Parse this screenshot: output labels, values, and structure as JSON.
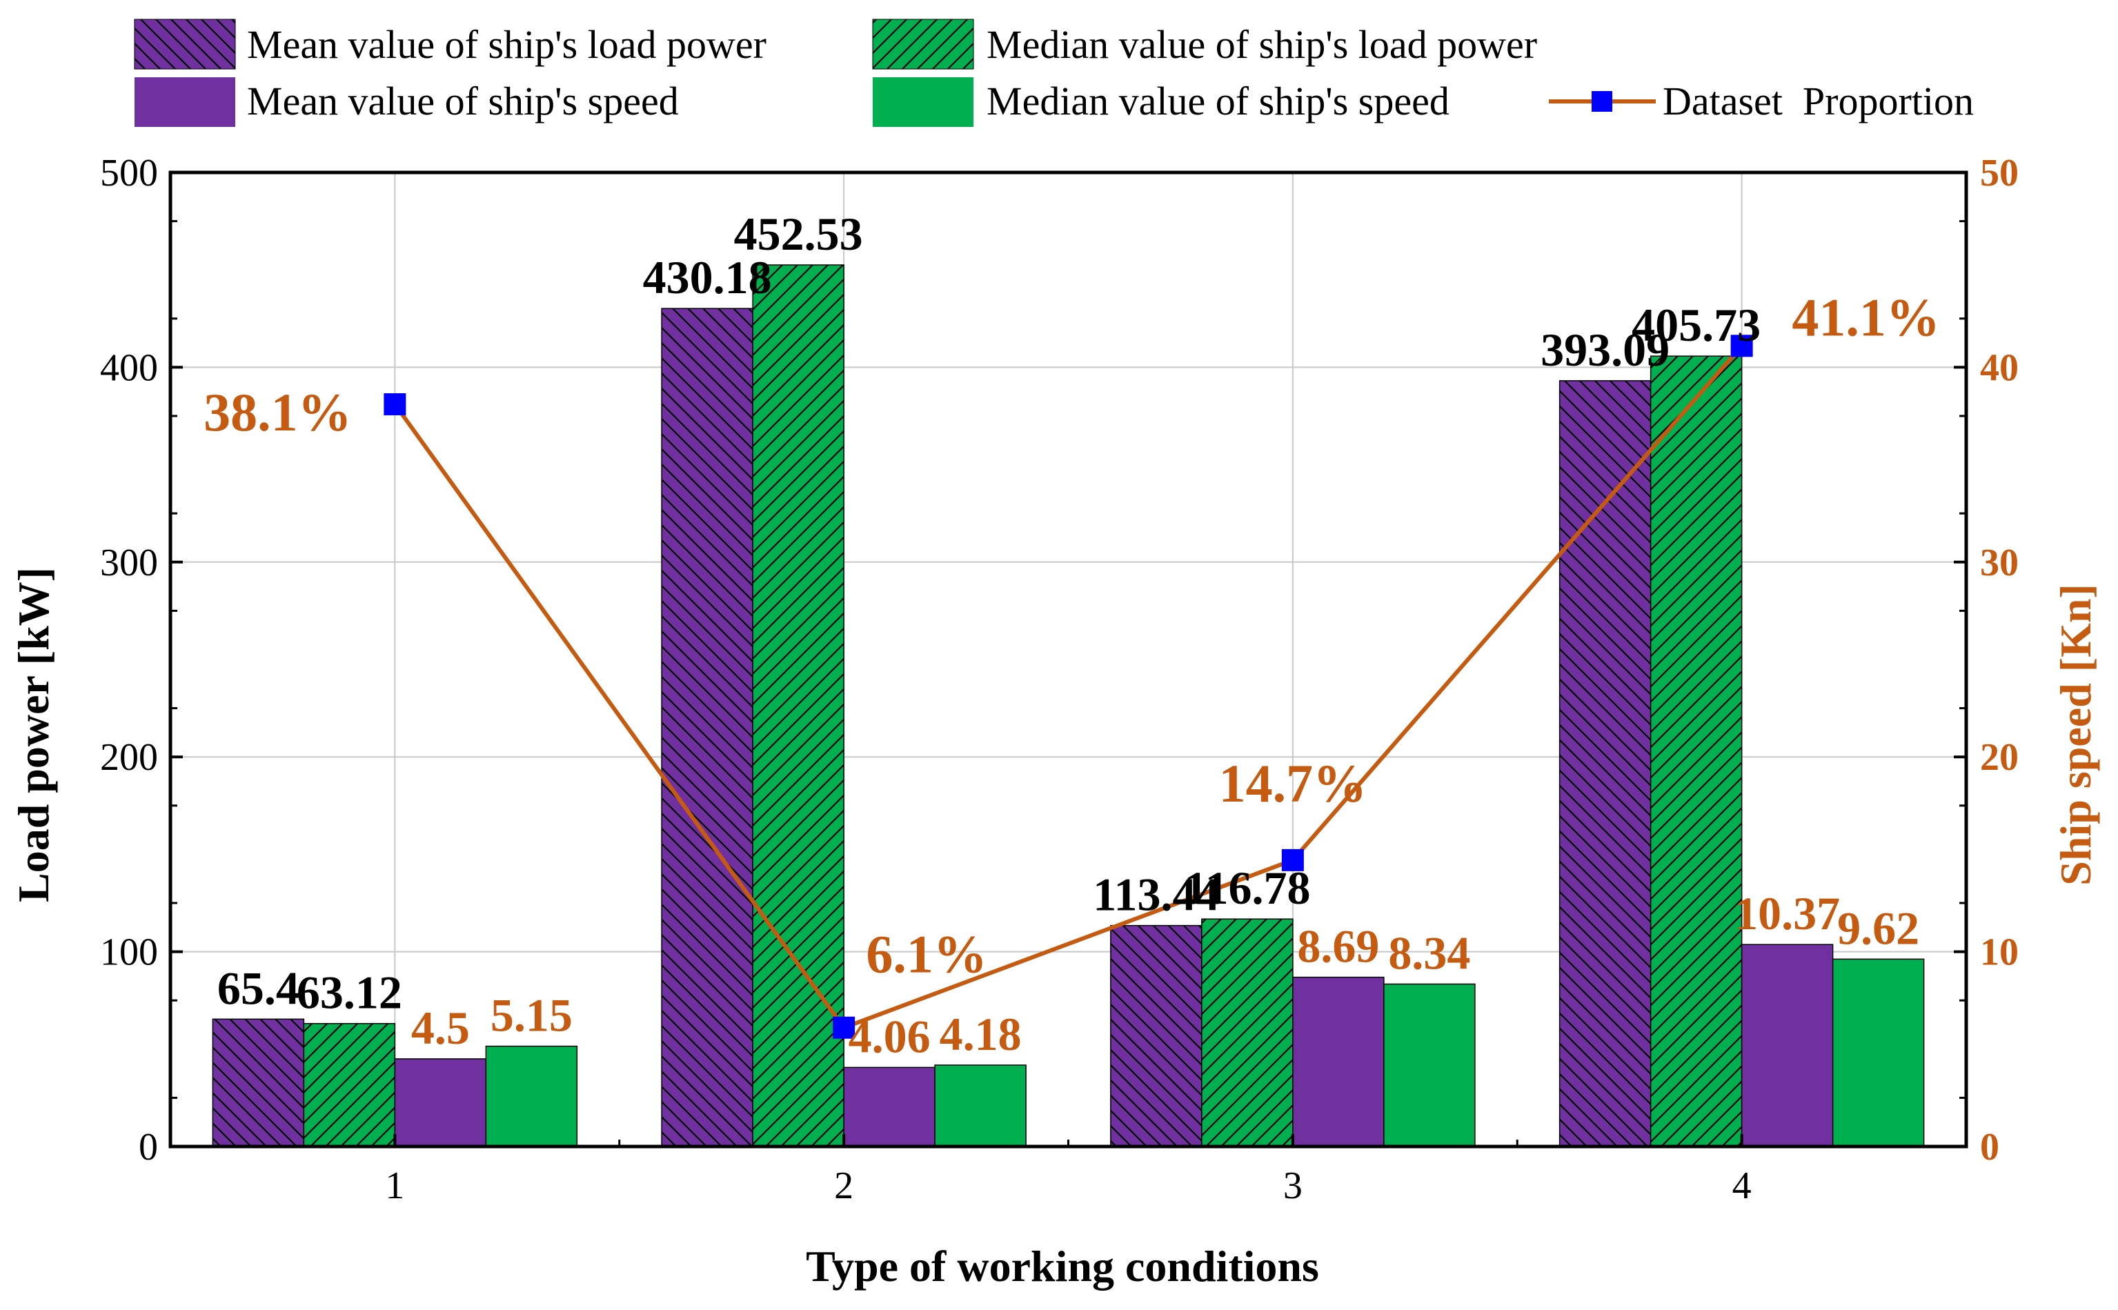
{
  "chart_data": {
    "type": "bar",
    "xlabel": "Type of working conditions",
    "ylabel": "Load power [kW]",
    "y2label": "Ship speed [Kn]",
    "categories": [
      "1",
      "2",
      "3",
      "4"
    ],
    "ylim": [
      0,
      500
    ],
    "y2lim": [
      0,
      50
    ],
    "yticks": [
      "0",
      "100",
      "200",
      "300",
      "400",
      "500"
    ],
    "y2ticks": [
      "0",
      "10",
      "20",
      "30",
      "40",
      "50"
    ],
    "grid": true,
    "legend_position": "top",
    "series": [
      {
        "name": "Mean value of ship's load power",
        "axis": "left",
        "color": "#7030a0",
        "hatch": "backslash",
        "values": [
          65.4,
          430.18,
          113.44,
          393.09
        ],
        "labels": [
          "65.4",
          "430.18",
          "113.44",
          "393.09"
        ]
      },
      {
        "name": "Median value of ship's load power",
        "axis": "left",
        "color": "#00b050",
        "hatch": "slash",
        "values": [
          63.12,
          452.53,
          116.78,
          405.73
        ],
        "labels": [
          "63.12",
          "452.53",
          "116.78",
          "405.73"
        ]
      },
      {
        "name": "Mean value of ship's speed",
        "axis": "right",
        "color": "#7030a0",
        "hatch": "none",
        "values": [
          4.5,
          4.06,
          8.69,
          10.37
        ],
        "labels": [
          "4.5",
          "4.06",
          "8.69",
          "10.37"
        ]
      },
      {
        "name": "Median value of ship's speed",
        "axis": "right",
        "color": "#00b050",
        "hatch": "none",
        "values": [
          5.15,
          4.18,
          8.34,
          9.62
        ],
        "labels": [
          "5.15",
          "4.18",
          "8.34",
          "9.62"
        ]
      }
    ],
    "line_series": {
      "name": "Dataset  Proportion",
      "axis": "right",
      "color": "#c55a11",
      "marker_color": "#0000ff",
      "values": [
        38.1,
        6.1,
        14.7,
        41.1
      ],
      "labels": [
        "38.1%",
        "6.1%",
        "14.7%",
        "41.1%"
      ]
    },
    "label_colors": {
      "power": "#000000",
      "speed": "#c55a11"
    }
  }
}
